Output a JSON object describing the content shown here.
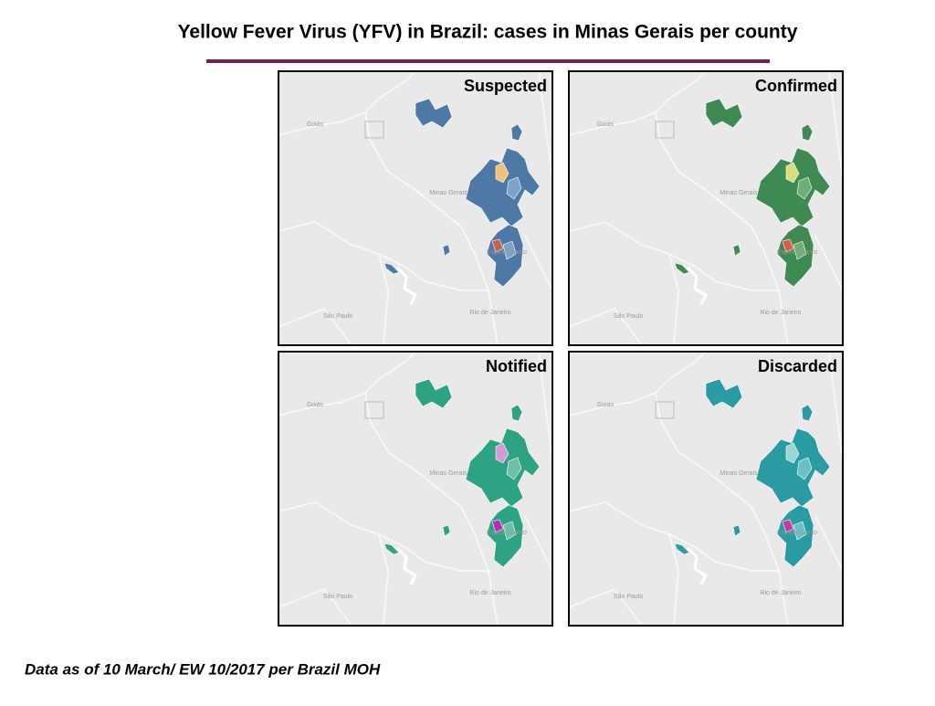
{
  "title": "Yellow Fever Virus (YFV) in Brazil: cases in Minas Gerais per county",
  "footnote": "Data as of 10 March/ EW 10/2017 per Brazil MOH",
  "place_labels": [
    "Goiás",
    "Minas Gerais",
    "Espírito Santo",
    "São Paulo",
    "Rio de Janeiro"
  ],
  "panels": [
    {
      "label": "Suspected",
      "colors": [
        "#4e79a7",
        "#7fa3c8",
        "#f1c07a",
        "#c8614a"
      ]
    },
    {
      "label": "Confirmed",
      "colors": [
        "#3f8a53",
        "#72ad78",
        "#d9dd7a",
        "#e05a4a"
      ]
    },
    {
      "label": "Notified",
      "colors": [
        "#2ea383",
        "#6cc0a5",
        "#d59ad8",
        "#b52fb0"
      ]
    },
    {
      "label": "Discarded",
      "colors": [
        "#2a9aa3",
        "#6cbfc4",
        "#9cd3d5",
        "#c23aa4"
      ]
    }
  ]
}
